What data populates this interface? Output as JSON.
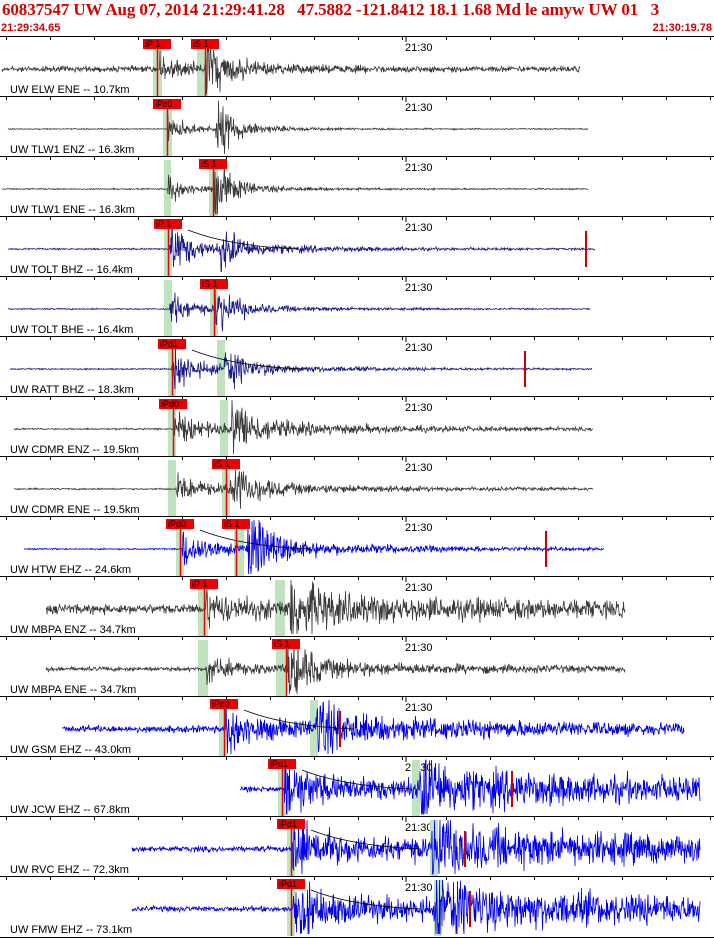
{
  "header": {
    "title": "60837547 UW Aug 07, 2014 21:29:41.28   47.5882 -121.8412 18.1 1.68 Md le amyw UW 01   3",
    "time_start": "21:29:34.65",
    "time_end": "21:30:19.78"
  },
  "colors": {
    "title": "#d40000",
    "pick": "#ee0000",
    "pick_window": "#bfe3bf",
    "trace_gray": "#3a3a3a",
    "trace_blue": "#0000ee",
    "trace_navy": "#1a1a8c",
    "trace_red": "#cc0000"
  },
  "minute_label": "21:30",
  "traces": [
    {
      "label": "UW ELW ENE -- 10.7km",
      "color": "gray",
      "picks": [
        "iP 1",
        "iS 1"
      ]
    },
    {
      "label": "UW TLW1 ENZ -- 16.3km",
      "color": "gray",
      "picks": [
        "iPc0"
      ]
    },
    {
      "label": "UW TLW1 ENE -- 16.3km",
      "color": "gray",
      "picks": [
        "iS 1"
      ]
    },
    {
      "label": "UW TOLT BHZ -- 16.4km",
      "color": "navy",
      "picks": [
        "iP 1"
      ]
    },
    {
      "label": "UW TOLT BHE -- 16.4km",
      "color": "navy",
      "picks": [
        "iS 1"
      ]
    },
    {
      "label": "UW RATT BHZ -- 18.3km",
      "color": "navy",
      "picks": [
        "iPd1"
      ]
    },
    {
      "label": "UW CDMR ENZ -- 19.5km",
      "color": "gray",
      "picks": [
        "iPd0"
      ]
    },
    {
      "label": "UW CDMR ENE -- 19.5km",
      "color": "gray",
      "picks": [
        "iS 1"
      ]
    },
    {
      "label": "UW HTW EHZ -- 24.6km",
      "color": "blue",
      "picks": [
        "iPd0",
        "iS 1"
      ]
    },
    {
      "label": "UW MBPA ENZ -- 34.7km",
      "color": "gray",
      "picks": [
        "iP 1"
      ]
    },
    {
      "label": "UW MBPA ENE -- 34.7km",
      "color": "gray",
      "picks": [
        "iS 1"
      ]
    },
    {
      "label": "UW GSM EHZ -- 43.0km",
      "color": "blue",
      "picks": [
        "iPc0"
      ]
    },
    {
      "label": "UW JCW EHZ -- 67.8km",
      "color": "blue",
      "picks": [
        "iPd1"
      ]
    },
    {
      "label": "UW RVC EHZ -- 72.3km",
      "color": "blue",
      "picks": [
        "iPd1"
      ]
    },
    {
      "label": "UW FMW EHZ -- 73.1km",
      "color": "blue",
      "picks": [
        "iPd1"
      ]
    }
  ]
}
